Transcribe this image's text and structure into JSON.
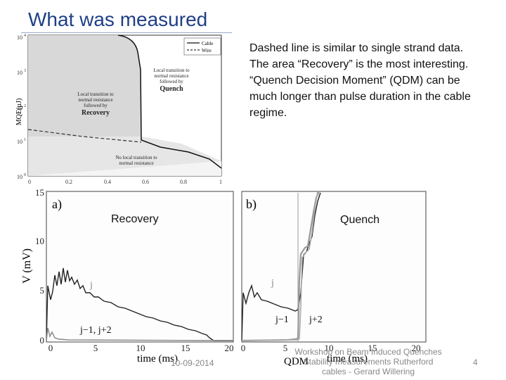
{
  "slide": {
    "title": "What was measured",
    "bullets": [
      "Dashed line is similar to single strand data.",
      "The area “Recovery” is the most interesting.",
      "“Quench Decision Moment” (QDM) can be much longer than pulse duration in the cable regime."
    ],
    "annotations": {
      "recovery": "Recovery",
      "quench": "Quench"
    },
    "footer": {
      "date": "10-09-2014",
      "center": "Workshop on Beam Induced Quenches Stability measurements Rutherford cables - Gerard Willering",
      "page": "4"
    }
  },
  "figure_top": {
    "ylabel": "MQE(µJ)",
    "yticks": [
      "10",
      "10",
      "10",
      "10",
      "10"
    ],
    "ytick_exps": [
      "4",
      "3",
      "2",
      "1",
      "0"
    ],
    "xticks": [
      "0",
      "0.2",
      "0.4",
      "0.6",
      "0.8",
      "1"
    ],
    "legend": [
      "Cable",
      "Wire"
    ],
    "labels": {
      "local_quench": [
        "Local transition to",
        "normal resistance",
        "followed by"
      ],
      "quench": "Quench",
      "local_recovery": [
        "Local transition to",
        "normal resistance",
        "followed by"
      ],
      "recovery": "Recovery",
      "no_local": [
        "No local transition to",
        "normal resistance"
      ]
    }
  },
  "figure_a": {
    "panel": "a)",
    "ylabel": "V (mV)",
    "xlabel": "time (ms)",
    "yticks": [
      "15",
      "10",
      "5",
      "0"
    ],
    "xticks": [
      "0",
      "5",
      "10",
      "15",
      "20"
    ],
    "labels": {
      "j": "j",
      "neighbors": "j−1, j+2"
    }
  },
  "figure_b": {
    "panel": "b)",
    "xlabel": "time (ms)",
    "xticks": [
      "0",
      "5",
      "10",
      "15",
      "20"
    ],
    "labels": {
      "j": "j",
      "jm1": "j−1",
      "jp2": "j+2",
      "qdm": "QDM"
    }
  }
}
